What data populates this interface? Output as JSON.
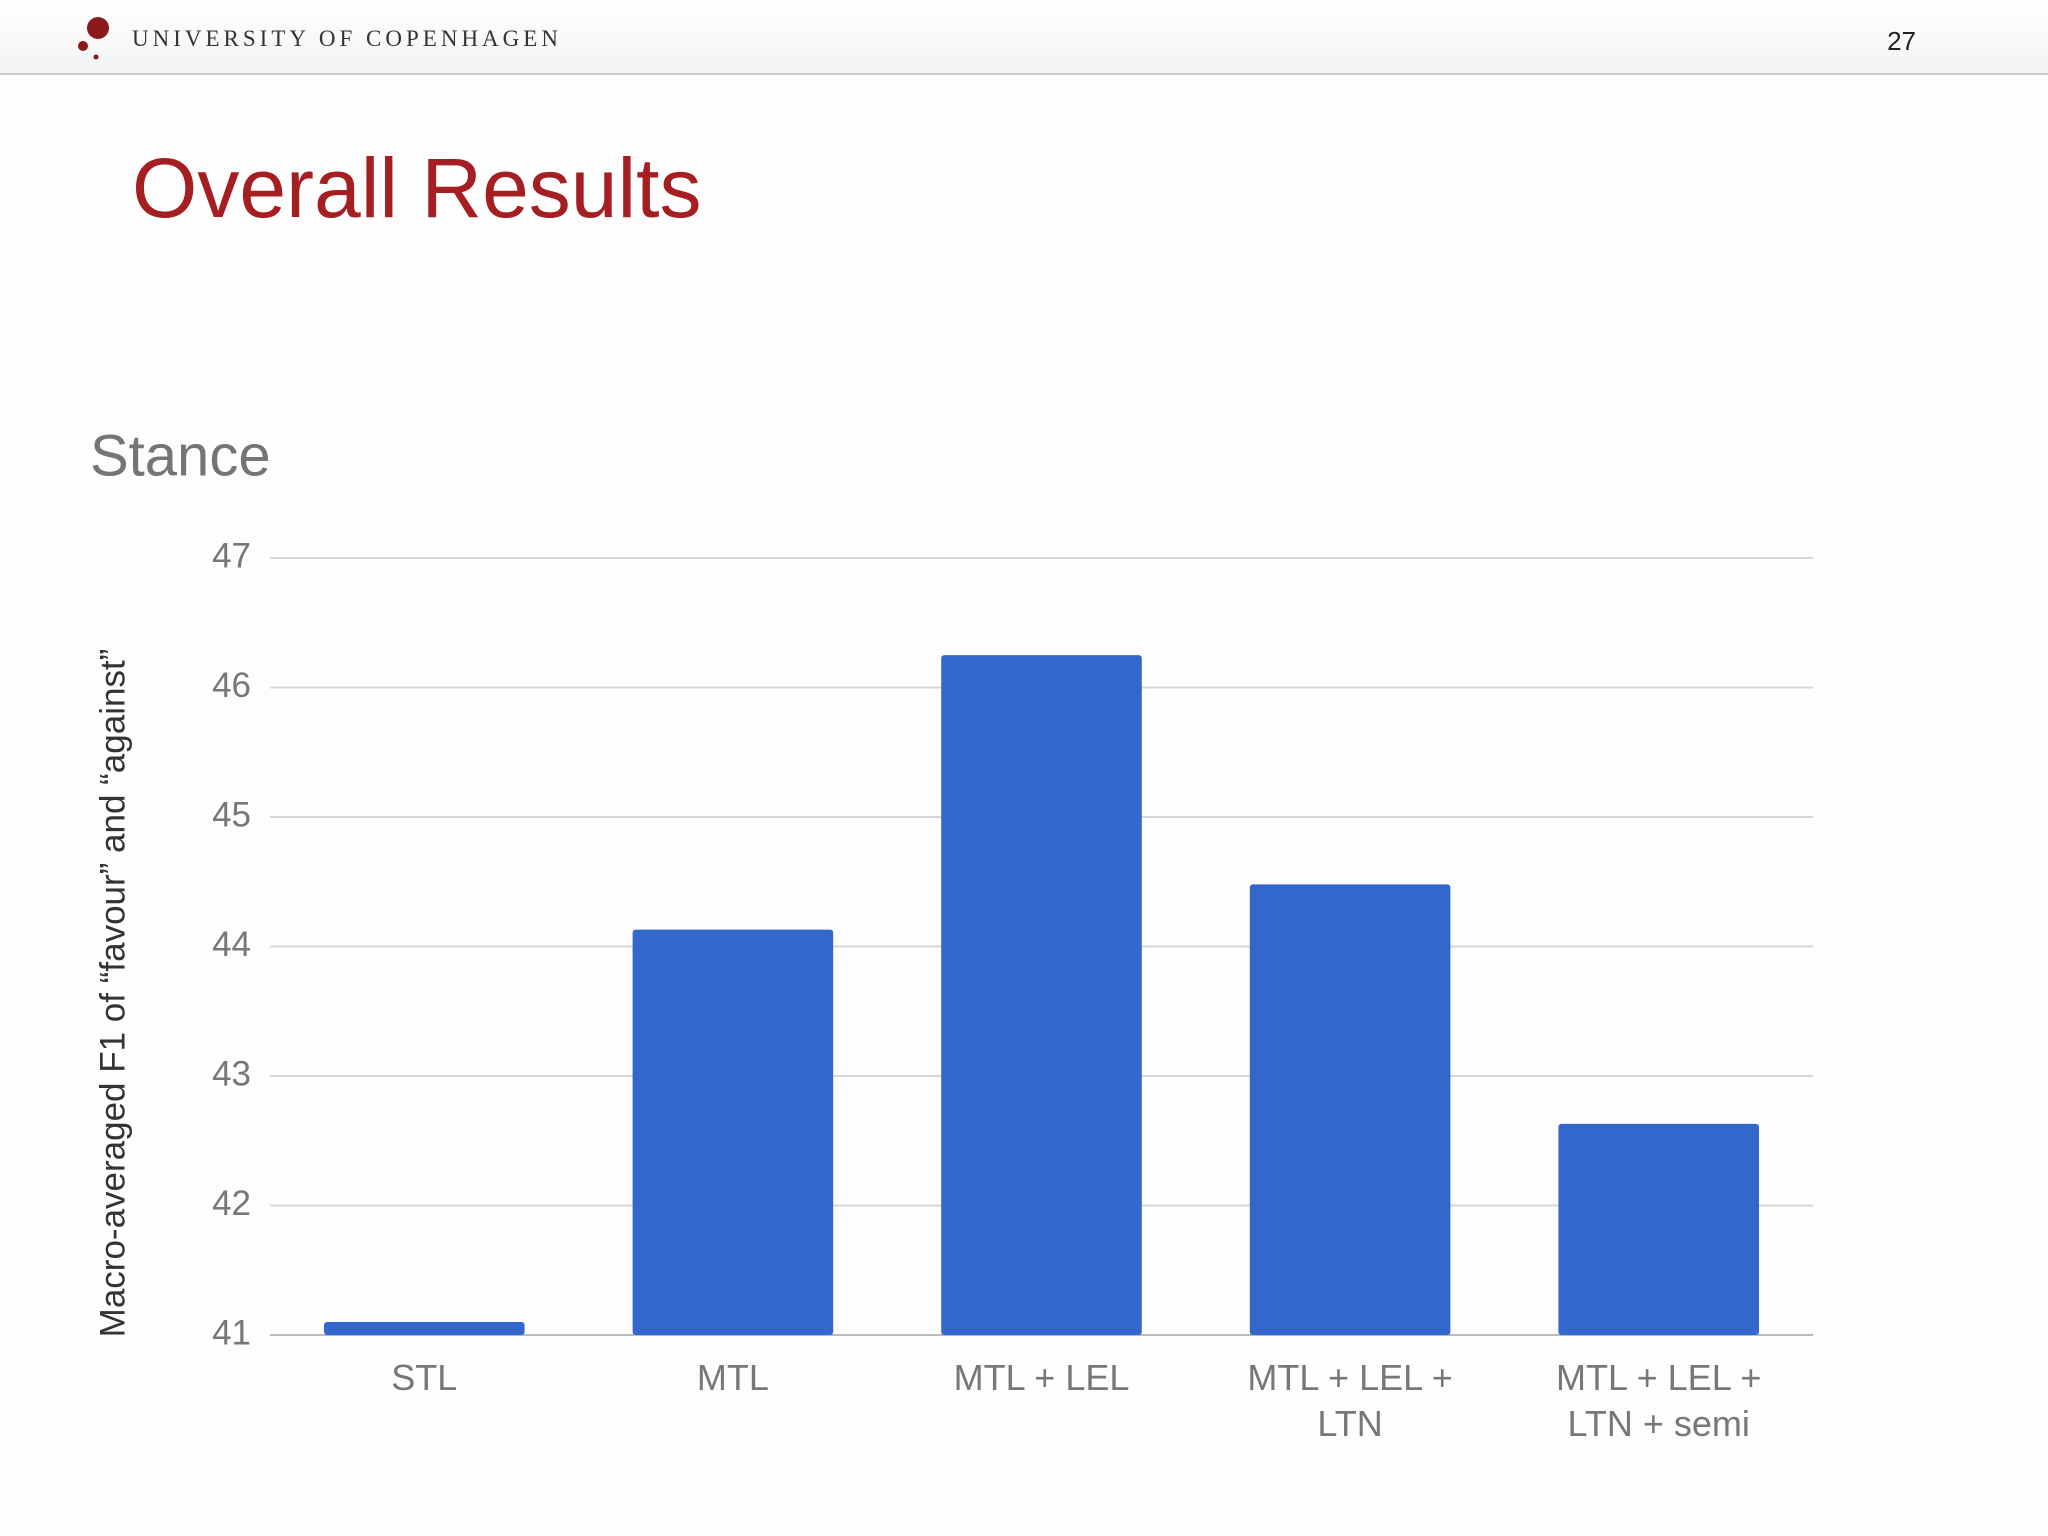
{
  "header": {
    "institution": "UNIVERSITY OF COPENHAGEN",
    "page_number": "27"
  },
  "slide_title": "Overall Results",
  "chart_data": {
    "type": "bar",
    "title": "Stance",
    "y_label": "Macro-averaged F1 of “favour” and “against”",
    "categories": [
      "STL",
      "MTL",
      "MTL + LEL",
      "MTL + LEL + LTN",
      "MTL + LEL + LTN + semi"
    ],
    "values": [
      41.1,
      44.13,
      46.25,
      44.48,
      42.63
    ],
    "color": "#3367cc",
    "ylim": [
      41,
      47
    ],
    "yticks": [
      41,
      42,
      43,
      44,
      45,
      46,
      47
    ],
    "grid": true
  }
}
